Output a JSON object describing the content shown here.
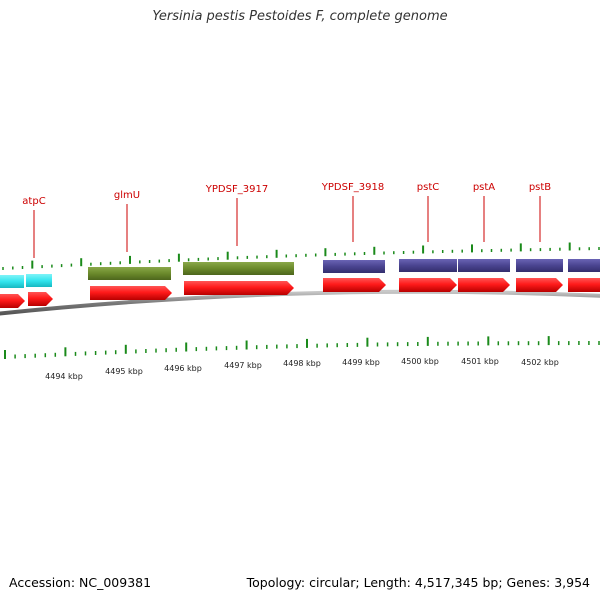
{
  "title": "Yersinia pestis Pestoides F, complete genome",
  "footer": {
    "accession": "Accession: NC_009381",
    "topology": "Topology: circular; Length: 4,517,345 bp; Genes: 3,954"
  },
  "colors": {
    "cds_arrow": "#ff1a1a",
    "label_red": "#cc0000",
    "tick_green": "#1a8a1a",
    "backbone": "#888888",
    "cyan_gene": "#33e5ee",
    "olive_gene": "#6b8a2b",
    "purple_gene": "#4a4490"
  },
  "genes": [
    {
      "name": "atpC"
    },
    {
      "name": "glmU"
    },
    {
      "name": "YPDSF_3917"
    },
    {
      "name": "YPDSF_3918"
    },
    {
      "name": "pstC"
    },
    {
      "name": "pstA"
    },
    {
      "name": "pstB"
    }
  ],
  "scale_labels": [
    "4494 kbp",
    "4495 kbp",
    "4496 kbp",
    "4497 kbp",
    "4498 kbp",
    "4499 kbp",
    "4500 kbp",
    "4501 kbp",
    "4502 kbp"
  ]
}
